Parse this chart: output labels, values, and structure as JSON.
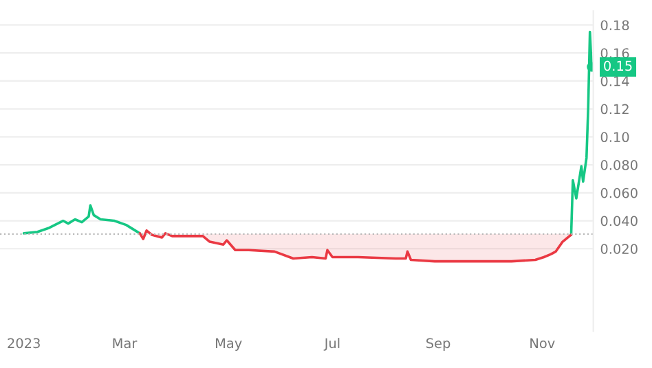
{
  "chart_data": {
    "type": "line",
    "series": [
      {
        "color": "#16c784",
        "x": [
          "2023-01-01",
          "2023-01-09",
          "2023-01-16",
          "2023-01-24",
          "2023-01-27",
          "2023-01-31",
          "2023-02-04",
          "2023-02-08",
          "2023-02-09",
          "2023-02-11",
          "2023-02-15",
          "2023-02-23",
          "2023-03-02",
          "2023-03-10",
          null,
          "2023-11-18",
          "2023-11-19",
          "2023-11-21",
          "2023-11-24",
          "2023-11-25",
          "2023-11-27",
          "2023-11-28",
          "2023-11-29",
          "2023-11-30"
        ],
        "values": [
          0.031,
          0.032,
          0.035,
          0.04,
          0.038,
          0.041,
          0.039,
          0.043,
          0.051,
          0.044,
          0.041,
          0.04,
          0.037,
          0.031,
          null,
          0.03,
          0.069,
          0.056,
          0.079,
          0.068,
          0.085,
          0.121,
          0.175,
          0.15
        ]
      },
      {
        "color": "#ea3943",
        "type": "area",
        "x": [
          "2023-03-10",
          "2023-03-12",
          "2023-03-14",
          "2023-03-17",
          "2023-03-23",
          "2023-03-25",
          "2023-03-29",
          "2023-04-09",
          "2023-04-16",
          "2023-04-20",
          "2023-04-28",
          "2023-04-30",
          "2023-05-05",
          "2023-05-13",
          "2023-05-28",
          "2023-06-08",
          "2023-06-19",
          "2023-06-27",
          "2023-06-28",
          "2023-07-01",
          "2023-07-16",
          "2023-08-07",
          "2023-08-13",
          "2023-08-14",
          "2023-08-16",
          "2023-08-30",
          "2023-09-14",
          "2023-09-29",
          "2023-10-14",
          "2023-10-28",
          "2023-11-02",
          "2023-11-06",
          "2023-11-09",
          "2023-11-13",
          "2023-11-18"
        ],
        "values": [
          0.031,
          0.027,
          0.033,
          0.03,
          0.028,
          0.031,
          0.029,
          0.029,
          0.029,
          0.025,
          0.023,
          0.026,
          0.019,
          0.019,
          0.018,
          0.013,
          0.014,
          0.013,
          0.019,
          0.014,
          0.014,
          0.013,
          0.013,
          0.018,
          0.012,
          0.011,
          0.011,
          0.011,
          0.011,
          0.012,
          0.014,
          0.016,
          0.018,
          0.025,
          0.03
        ]
      }
    ],
    "ref_lines": [
      {
        "axis": "y",
        "value": 0.0305,
        "color": "#bbbbbb",
        "line_style": "dotted"
      }
    ],
    "annotations": [
      {
        "text": "0.15",
        "x": "2023-11-30",
        "y": 0.15
      }
    ],
    "xlim": [
      "2022-12-18",
      "2023-12-01"
    ],
    "xticks": [
      {
        "value": "2023-01-01",
        "label": "2023"
      },
      {
        "value": "2023-03-01",
        "label": "Mar"
      },
      {
        "value": "2023-05-01",
        "label": "May"
      },
      {
        "value": "2023-07-01",
        "label": "Jul"
      },
      {
        "value": "2023-09-01",
        "label": "Sep"
      },
      {
        "value": "2023-11-01",
        "label": "Nov"
      }
    ],
    "ylim": [
      -0.039,
      0.19
    ],
    "yticks": [
      {
        "value": 0.02,
        "label": "0.020"
      },
      {
        "value": 0.04,
        "label": "0.040"
      },
      {
        "value": 0.06,
        "label": "0.060"
      },
      {
        "value": 0.08,
        "label": "0.080"
      },
      {
        "value": 0.1,
        "label": "0.10"
      },
      {
        "value": 0.12,
        "label": "0.12"
      },
      {
        "value": 0.14,
        "label": "0.14"
      },
      {
        "value": 0.16,
        "label": "0.16"
      },
      {
        "value": 0.18,
        "label": "0.18"
      }
    ],
    "grid": "y",
    "line_style": "solid"
  }
}
